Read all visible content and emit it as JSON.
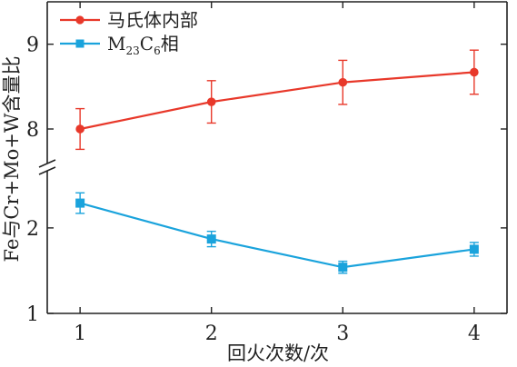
{
  "chart_data": {
    "type": "line",
    "broken_y_axis": true,
    "x": [
      1,
      2,
      3,
      4
    ],
    "xticks": [
      "1",
      "2",
      "3",
      "4"
    ],
    "xlabel": "回火次数/次",
    "ylabel": "Fe与Cr+Mo+W含量比",
    "xlim": [
      0.75,
      4.25
    ],
    "ylim_upper": [
      7.55,
      9.5
    ],
    "ylim_lower": [
      1,
      2.7
    ],
    "yticks_upper": [
      "8",
      "9"
    ],
    "yticks_lower": [
      "1",
      "2"
    ],
    "grid": false,
    "legend_position": "top-left",
    "series": [
      {
        "name": "马氏体内部",
        "marker": "circle",
        "color": "#e8382a",
        "values": [
          8.0,
          8.32,
          8.55,
          8.67
        ],
        "errors": [
          0.24,
          0.25,
          0.26,
          0.26
        ]
      },
      {
        "name_main": "M",
        "name_sub1": "23",
        "name_mid": "C",
        "name_sub2": "6",
        "name_tail": "相",
        "marker": "square",
        "color": "#1aa3dc",
        "values": [
          2.29,
          1.87,
          1.54,
          1.75
        ],
        "errors": [
          0.12,
          0.09,
          0.07,
          0.08
        ]
      }
    ]
  }
}
